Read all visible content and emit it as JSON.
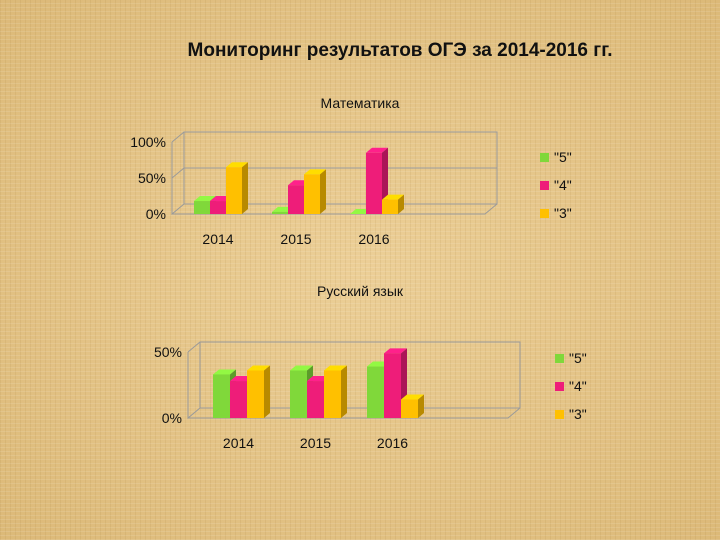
{
  "slide": {
    "title": "Мониторинг результатов ОГЭ  за 2014-2016 гг."
  },
  "colors": {
    "grade5": "#80d83a",
    "grade4": "#ee1d79",
    "grade3": "#ffc000"
  },
  "chart_data": [
    {
      "type": "bar",
      "title": "Математика",
      "categories": [
        "2014",
        "2015",
        "2016"
      ],
      "series": [
        {
          "name": "\"5\"",
          "color": "#80d83a",
          "values": [
            18,
            3,
            0
          ]
        },
        {
          "name": "\"4\"",
          "color": "#ee1d79",
          "values": [
            18,
            40,
            85
          ]
        },
        {
          "name": "\"3\"",
          "color": "#ffc000",
          "values": [
            65,
            55,
            20
          ]
        }
      ],
      "yticks": [
        "0%",
        "50%",
        "100%"
      ],
      "ylim": [
        0,
        100
      ],
      "legend": "right",
      "grid": true
    },
    {
      "type": "bar",
      "title": "Русский язык",
      "categories": [
        "2014",
        "2015",
        "2016"
      ],
      "series": [
        {
          "name": "\"5\"",
          "color": "#80d83a",
          "values": [
            33,
            36,
            39
          ]
        },
        {
          "name": "\"4\"",
          "color": "#ee1d79",
          "values": [
            28,
            28,
            49
          ]
        },
        {
          "name": "\"3\"",
          "color": "#ffc000",
          "values": [
            36,
            36,
            14
          ]
        }
      ],
      "yticks": [
        "0%",
        "50%"
      ],
      "ylim": [
        0,
        50
      ],
      "legend": "right",
      "grid": true
    }
  ]
}
